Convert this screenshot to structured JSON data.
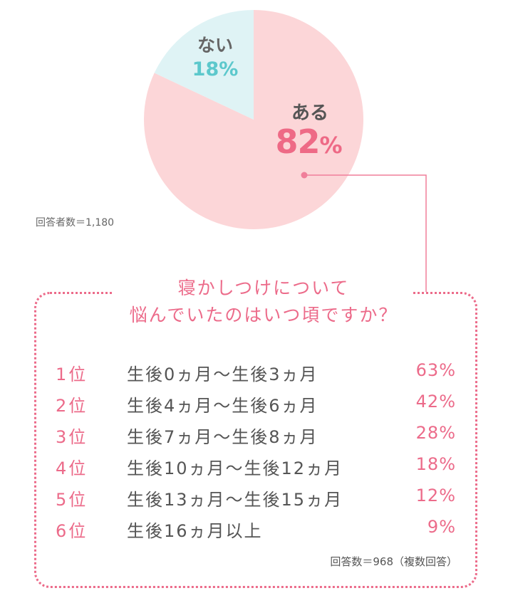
{
  "chart_data": {
    "type": "pie",
    "slices": [
      {
        "label": "ある",
        "value": 82,
        "value_label": "82",
        "unit": "%",
        "color": "#fcd6d8"
      },
      {
        "label": "ない",
        "value": 18,
        "value_label": "18%",
        "color": "#dff3f5"
      }
    ],
    "respondents_note": "回答者数＝1,180",
    "line_color": "#f07f9a"
  },
  "ranking": {
    "question_line1": "寝かしつけについて",
    "question_line2": "悩んでいたのはいつ頃ですか？",
    "items": [
      {
        "rank": "1位",
        "period": "生後0ヵ月〜生後3ヵ月",
        "percent": "63%"
      },
      {
        "rank": "2位",
        "period": "生後4ヵ月〜生後6ヵ月",
        "percent": "42%"
      },
      {
        "rank": "3位",
        "period": "生後7ヵ月〜生後8ヵ月",
        "percent": "28%"
      },
      {
        "rank": "4位",
        "period": "生後10ヵ月〜生後12ヵ月",
        "percent": "18%"
      },
      {
        "rank": "5位",
        "period": "生後13ヵ月〜生後15ヵ月",
        "percent": "12%"
      },
      {
        "rank": "6位",
        "period": "生後16ヵ月以上",
        "percent": "9%"
      }
    ],
    "answers_note": "回答数＝968（複数回答）",
    "accent_color": "#ec6b8a"
  }
}
